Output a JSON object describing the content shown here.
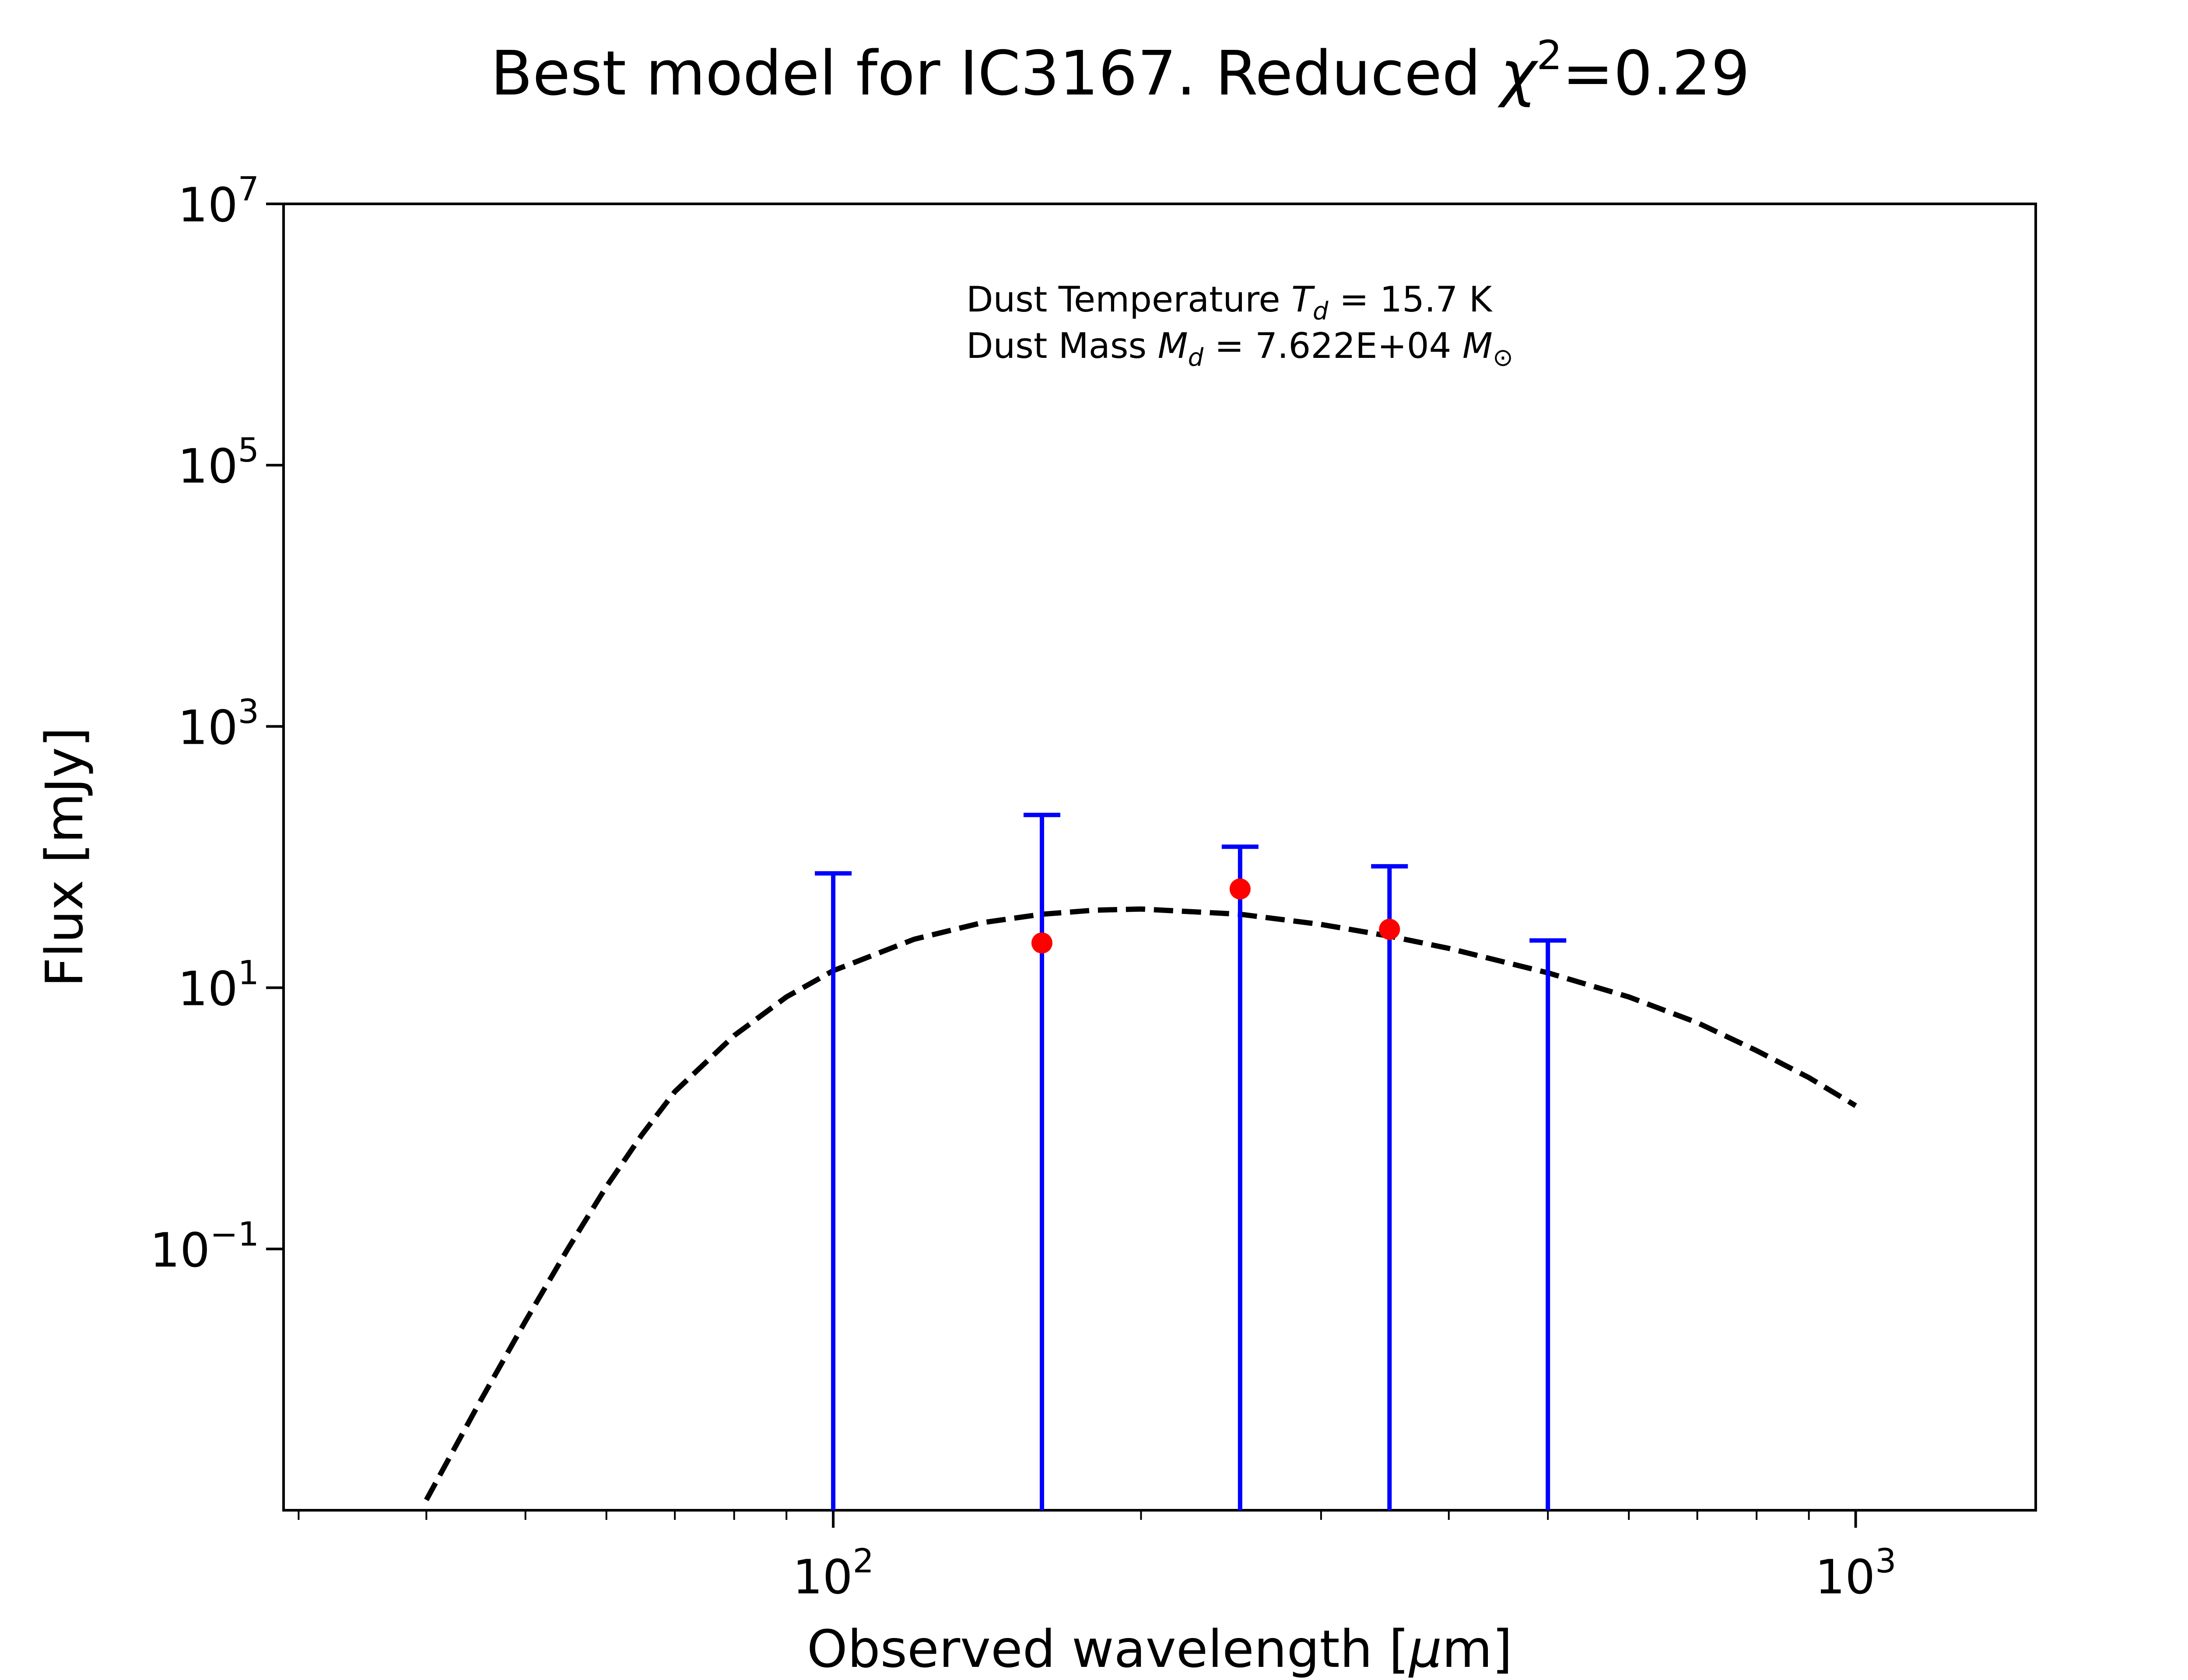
{
  "chart_data": {
    "type": "scatter",
    "title": {
      "prefix": "Best model for IC3167. Reduced ",
      "symbol": "χ",
      "superscript": "2",
      "suffix": "=0.29"
    },
    "xlabel": {
      "prefix": "Observed wavelength [",
      "symbol": "μ",
      "suffix": "m]"
    },
    "ylabel": "Flux [mJy]",
    "xscale": "log",
    "yscale": "log",
    "xlim": [
      29,
      1500
    ],
    "ylim": [
      0.001,
      10000000
    ],
    "x_ticks": [
      {
        "value": 100,
        "base": "10",
        "exp": "2"
      },
      {
        "value": 1000,
        "base": "10",
        "exp": "3"
      }
    ],
    "y_ticks": [
      {
        "value": 0.1,
        "base": "10",
        "exp": "−1"
      },
      {
        "value": 10,
        "base": "10",
        "exp": "1"
      },
      {
        "value": 1000,
        "base": "10",
        "exp": "3"
      },
      {
        "value": 100000,
        "base": "10",
        "exp": "5"
      },
      {
        "value": 10000000,
        "base": "10",
        "exp": "7"
      }
    ],
    "annotation": {
      "line1": {
        "prefix": "Dust Temperature ",
        "var": "T",
        "sub": "d",
        "suffix": " = 15.7 K"
      },
      "line2": {
        "prefix": "Dust Mass ",
        "var": "M",
        "sub": "d",
        "middle": " = 7.622E+04 ",
        "unit": "M",
        "unit_sub": "⊙"
      }
    },
    "model": {
      "name": "",
      "style": "dashed",
      "color": "#000000",
      "x": [
        40,
        45,
        50,
        55,
        60,
        65,
        70,
        80,
        90,
        100,
        120,
        140,
        160,
        180,
        200,
        250,
        300,
        350,
        400,
        500,
        600,
        700,
        800,
        900,
        1000
      ],
      "y": [
        0.0012,
        0.0065,
        0.028,
        0.1,
        0.3,
        0.75,
        1.6,
        4.3,
        8.5,
        13.5,
        23.5,
        31.5,
        36.5,
        39.2,
        40,
        36.5,
        30.5,
        24.8,
        20,
        13,
        8.5,
        5.4,
        3.3,
        2.05,
        1.25
      ]
    },
    "errorbars": {
      "color": "#0000ff",
      "points": [
        {
          "x": 100,
          "upper": 75
        },
        {
          "x": 160,
          "upper": 210
        },
        {
          "x": 250,
          "upper": 120
        },
        {
          "x": 350,
          "upper": 85
        },
        {
          "x": 500,
          "upper": 23
        }
      ]
    },
    "points": {
      "color": "#ff0000",
      "x": [
        160,
        250,
        350
      ],
      "y": [
        22,
        57,
        28
      ]
    }
  }
}
